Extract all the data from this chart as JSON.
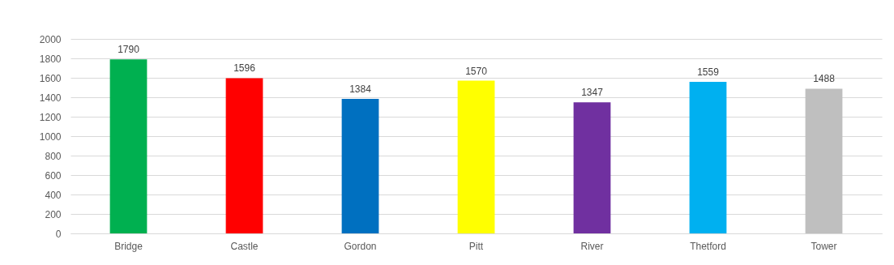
{
  "chart_data": {
    "type": "bar",
    "categories": [
      "Bridge",
      "Castle",
      "Gordon",
      "Pitt",
      "River",
      "Thetford",
      "Tower"
    ],
    "values": [
      1790,
      1596,
      1384,
      1570,
      1347,
      1559,
      1488
    ],
    "colors": [
      "#00b050",
      "#ff0000",
      "#0070c0",
      "#ffff00",
      "#7030a0",
      "#00b0f0",
      "#bfbfbf"
    ],
    "ylim": [
      0,
      2000
    ],
    "yticks": [
      0,
      200,
      400,
      600,
      800,
      1000,
      1200,
      1400,
      1600,
      1800,
      2000
    ],
    "grid": "y",
    "data_labels": true,
    "legend": false
  }
}
